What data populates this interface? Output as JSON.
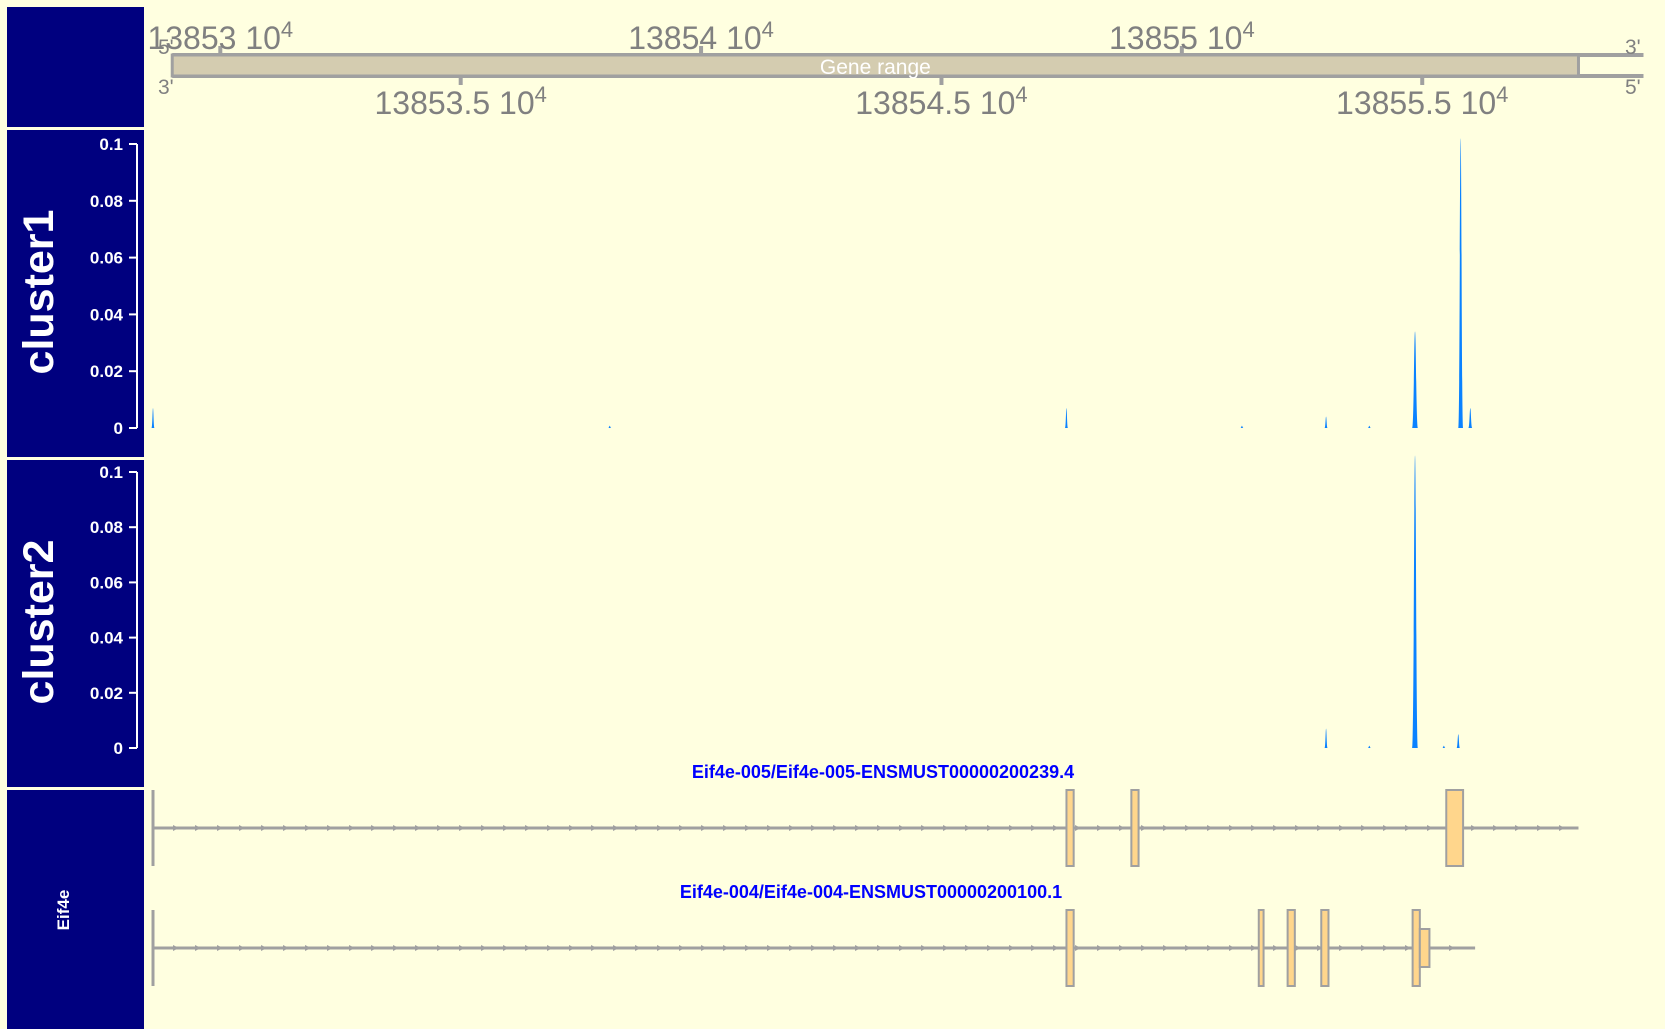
{
  "colors": {
    "background": "#ffffe0",
    "panel": "#00007f",
    "panel_text": "#ffffff",
    "signal": "#0a82ff",
    "axis_gray": "#a0a0a0",
    "axis_text": "#808080",
    "gene_range_fill": "#d4ccb0",
    "exon_fill": "#ffd68c",
    "exon_stroke": "#a0a0a0",
    "transcript_label": "#0000ff"
  },
  "chart_data": {
    "type": "area",
    "xlim": [
      138525.6,
      138556.8
    ],
    "ruler": {
      "label": "Gene  range",
      "range": [
        138526.0,
        138555.25
      ],
      "top_ticks": [
        {
          "x": 138527.0,
          "label": "13853 10",
          "exp": "4"
        },
        {
          "x": 138537.0,
          "label": "13854 10",
          "exp": "4"
        },
        {
          "x": 138547.0,
          "label": "13855 10",
          "exp": "4"
        }
      ],
      "bottom_ticks": [
        {
          "x": 138532.0,
          "label": "13853.5 10",
          "exp": "4"
        },
        {
          "x": 138542.0,
          "label": "13854.5 10",
          "exp": "4"
        },
        {
          "x": 138552.0,
          "label": "13855.5 10",
          "exp": "4"
        }
      ],
      "strand_labels": {
        "top_left": "5'",
        "top_right": "3'",
        "bottom_left": "3'",
        "bottom_right": "5'"
      }
    },
    "tracks": [
      {
        "name": "cluster1",
        "ylim": [
          0,
          0.1
        ],
        "yticks": [
          "0",
          "0.02",
          "0.04",
          "0.06",
          "0.08",
          "0.1"
        ],
        "peaks": [
          {
            "x": 138525.6,
            "y": 0.007,
            "w": 0.03
          },
          {
            "x": 138535.1,
            "y": 0.0008,
            "w": 0.03
          },
          {
            "x": 138544.6,
            "y": 0.007,
            "w": 0.04
          },
          {
            "x": 138548.25,
            "y": 0.0008,
            "w": 0.03
          },
          {
            "x": 138550.0,
            "y": 0.004,
            "w": 0.05
          },
          {
            "x": 138550.9,
            "y": 0.0008,
            "w": 0.03
          },
          {
            "x": 138551.85,
            "y": 0.034,
            "w": 0.12
          },
          {
            "x": 138552.8,
            "y": 0.102,
            "w": 0.1
          },
          {
            "x": 138553.0,
            "y": 0.007,
            "w": 0.08
          }
        ]
      },
      {
        "name": "cluster2",
        "ylim": [
          0,
          0.1
        ],
        "yticks": [
          "0",
          "0.02",
          "0.04",
          "0.06",
          "0.08",
          "0.1"
        ],
        "peaks": [
          {
            "x": 138550.0,
            "y": 0.007,
            "w": 0.06
          },
          {
            "x": 138550.9,
            "y": 0.0008,
            "w": 0.03
          },
          {
            "x": 138551.85,
            "y": 0.106,
            "w": 0.12
          },
          {
            "x": 138552.45,
            "y": 0.0008,
            "w": 0.03
          },
          {
            "x": 138552.75,
            "y": 0.005,
            "w": 0.07
          }
        ]
      }
    ],
    "gene_track": {
      "name": "Eif4e",
      "transcripts": [
        {
          "label": "Eif4e-005/Eif4e-005-ENSMUST00000200239.4",
          "start": 138525.6,
          "end": 138555.25,
          "exons": [
            {
              "start": 138544.6,
              "end": 138544.75,
              "cds": true
            },
            {
              "start": 138545.95,
              "end": 138546.1,
              "cds": true
            },
            {
              "start": 138552.5,
              "end": 138552.85,
              "cds": true
            }
          ]
        },
        {
          "label": "Eif4e-004/Eif4e-004-ENSMUST00000200100.1",
          "start": 138525.6,
          "end": 138553.1,
          "exons": [
            {
              "start": 138544.6,
              "end": 138544.75,
              "cds": true
            },
            {
              "start": 138548.6,
              "end": 138548.7,
              "cds": true
            },
            {
              "start": 138549.2,
              "end": 138549.35,
              "cds": true
            },
            {
              "start": 138549.9,
              "end": 138550.05,
              "cds": true
            },
            {
              "start": 138551.8,
              "end": 138551.95,
              "cds": true
            },
            {
              "start": 138551.95,
              "end": 138552.15,
              "cds": false
            }
          ]
        }
      ]
    }
  }
}
